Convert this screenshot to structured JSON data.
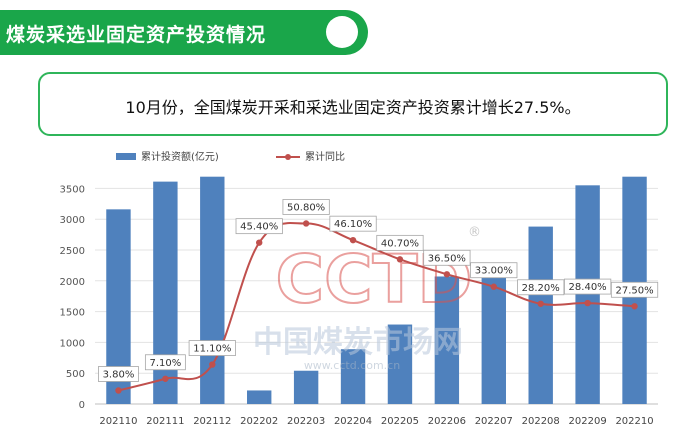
{
  "banner": {
    "title": "煤炭采选业固定资产投资情况"
  },
  "summary": {
    "text": "10月份，全国煤炭开采和采选业固定资产投资累计增长27.5%。"
  },
  "watermark": {
    "cctd": "CCTD",
    "registered": "®",
    "cn": "中国煤炭市场网",
    "url": "www.cctd.com.cn"
  },
  "colors": {
    "bar": "#4f81bd",
    "line": "#c0504d",
    "green": "#1aa64a"
  },
  "chart_data": {
    "type": "bar",
    "categories": [
      "202110",
      "202111",
      "202112",
      "202202",
      "202203",
      "202204",
      "202205",
      "202206",
      "202207",
      "202208",
      "202209",
      "202210"
    ],
    "series": [
      {
        "name": "累计投资额(亿元)",
        "type": "bar",
        "axis": "left",
        "values": [
          3160,
          3610,
          3690,
          220,
          540,
          890,
          1290,
          2070,
          2280,
          2880,
          3550,
          3690
        ]
      },
      {
        "name": "累计同比",
        "type": "line",
        "axis": "right",
        "values": [
          3.8,
          7.1,
          11.1,
          45.4,
          50.8,
          46.1,
          40.7,
          36.5,
          33.0,
          28.2,
          28.4,
          27.5
        ],
        "labels": [
          "3.80%",
          "7.10%",
          "11.10%",
          "45.40%",
          "50.80%",
          "46.10%",
          "40.70%",
          "36.50%",
          "33.00%",
          "28.20%",
          "28.40%",
          "27.50%"
        ]
      }
    ],
    "yticks": [
      "0",
      "500",
      "1000",
      "1500",
      "2000",
      "2500",
      "3000",
      "3500"
    ],
    "ylim": [
      0,
      3750
    ],
    "y2lim": [
      0,
      65
    ],
    "legend": "top-left",
    "grid": true
  }
}
